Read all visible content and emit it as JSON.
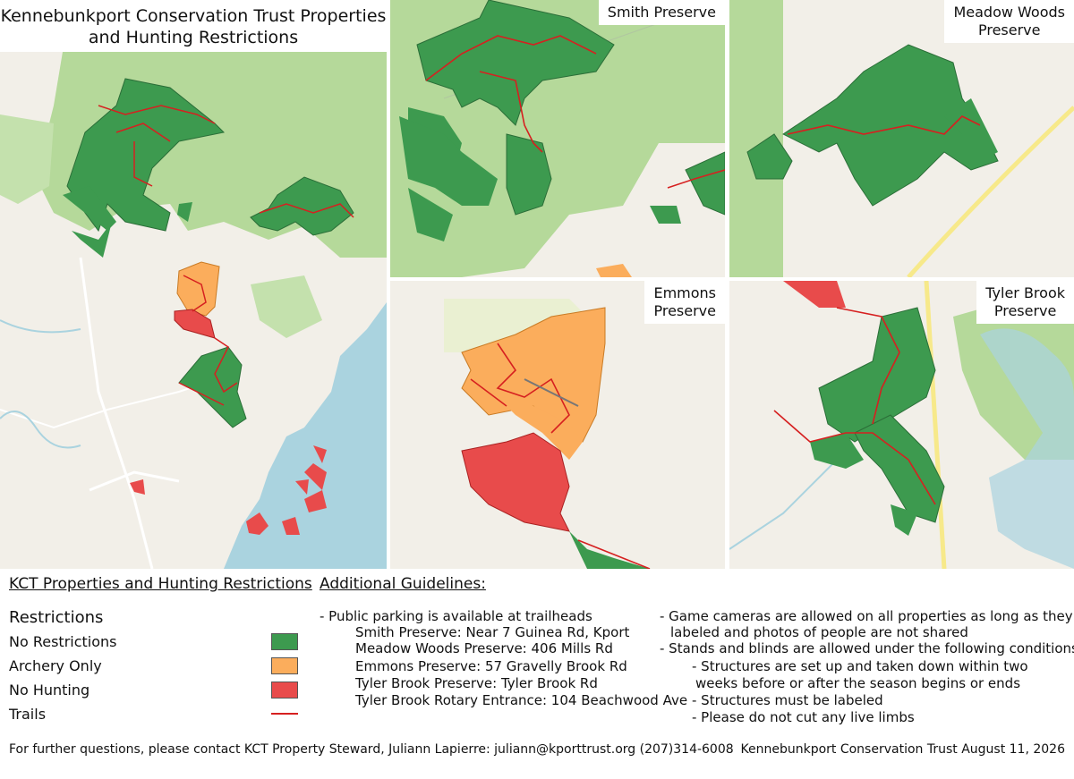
{
  "main_title": {
    "line1": "Kennebunkport Conservation Trust Properties",
    "line2": "and Hunting Restrictions"
  },
  "panels": {
    "smith": {
      "title": "Smith Preserve"
    },
    "meadow": {
      "title_line1": "Meadow Woods",
      "title_line2": "Preserve"
    },
    "emmons": {
      "title_line1": "Emmons",
      "title_line2": "Preserve"
    },
    "tyler": {
      "title_line1": "Tyler Brook",
      "title_line2": "Preserve"
    }
  },
  "colors": {
    "no_restrictions": "#3d9a4f",
    "archery_only": "#fbad5c",
    "no_hunting": "#e84b4b",
    "trails": "#d62020",
    "forest": "#a9d38e",
    "water": "#aad3df",
    "land": "#f2efe8"
  },
  "legend": {
    "heading": "KCT Properties and Hunting Restrictions",
    "title": "Restrictions",
    "items": [
      {
        "label": "No Restrictions",
        "color": "#3d9a4f"
      },
      {
        "label": "Archery Only",
        "color": "#fbad5c"
      },
      {
        "label": "No Hunting",
        "color": "#e84b4b"
      },
      {
        "label": "Trails",
        "color": "#d62020"
      }
    ]
  },
  "guidelines": {
    "heading": "Additional Guidelines:",
    "parking_intro": "- Public parking is available at trailheads",
    "parking": [
      "Smith Preserve: Near 7 Guinea Rd, Kport",
      "Meadow Woods Preserve: 406 Mills Rd",
      "Emmons Preserve: 57 Gravelly Brook Rd",
      "Tyler Brook Preserve: Tyler Brook Rd",
      "Tyler Brook Rotary Entrance: 104 Beachwood Ave"
    ],
    "cameras_line1": "- Game cameras are allowed on all properties as long as they are",
    "cameras_line2": "labeled and photos of people are not shared",
    "stands_intro": "- Stands and blinds are allowed under the following conditions:",
    "stands": [
      "- Structures are set up and taken down within two",
      "weeks before or after the season begins or ends",
      "- Structures must be labeled",
      "- Please do not cut any live limbs"
    ]
  },
  "footer": {
    "contact": "For further questions, please contact KCT Property Steward, Juliann Lapierre:  juliann@kporttrust.org  (207)314-6008",
    "credit": "Kennebunkport Conservation Trust  August 11, 2026"
  }
}
